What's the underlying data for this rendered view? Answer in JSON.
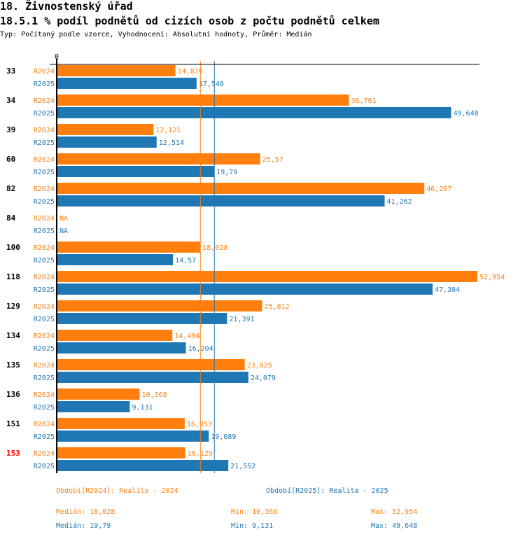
{
  "header": {
    "title": "18. Živnostenský úřad",
    "subtitle": "18.5.1 % podíl podnětů od cizích osob z počtu podnětů celkem",
    "meta": "Typ: Počítaný podle vzorce, Vyhodnocení: Absolutní hodnoty, Průměr: Medián"
  },
  "colors": {
    "r2024": "#ff7f0e",
    "r2025": "#1f77b4",
    "axis": "#000000",
    "highlight_label": "#ff0000"
  },
  "chart_data": {
    "type": "bar",
    "orientation": "horizontal",
    "title": "18.5.1 % podíl podnětů od cizích osob z počtu podnětů celkem",
    "xlabel": "",
    "ylabel": "",
    "x_ticks": [
      "0"
    ],
    "xlim": [
      0,
      53
    ],
    "grid": false,
    "categories": [
      "33",
      "34",
      "39",
      "60",
      "82",
      "84",
      "100",
      "118",
      "129",
      "134",
      "135",
      "136",
      "151",
      "153"
    ],
    "highlighted_category": "153",
    "series": [
      {
        "name": "R2024",
        "values": [
          14.879,
          36.761,
          12.121,
          25.57,
          46.267,
          null,
          18.028,
          52.954,
          25.812,
          14.494,
          23.625,
          10.368,
          16.053,
          16.129
        ],
        "labels": [
          "14,879",
          "36,761",
          "12,121",
          "25,57",
          "46,267",
          "NA",
          "18,028",
          "52,954",
          "25,812",
          "14,494",
          "23,625",
          "10,368",
          "16,053",
          "16,129"
        ],
        "median": 18.028
      },
      {
        "name": "R2025",
        "values": [
          17.548,
          49.648,
          12.514,
          19.79,
          41.262,
          null,
          14.57,
          47.304,
          21.391,
          16.204,
          24.079,
          9.131,
          19.089,
          21.552
        ],
        "labels": [
          "17,548",
          "49,648",
          "12,514",
          "19,79",
          "41,262",
          "NA",
          "14,57",
          "47,304",
          "21,391",
          "16,204",
          "24,079",
          "9,131",
          "19,089",
          "21,552"
        ],
        "median": 19.79
      }
    ]
  },
  "legend": {
    "r2024_label": "Období[R2024]: Realita - 2024",
    "r2025_label": "Období[R2025]: Realita - 2025",
    "r2024_median": "Medián: 18,028",
    "r2024_min": "Min: 10,368",
    "r2024_max": "Max: 52,954",
    "r2025_median": "Medián: 19,79",
    "r2025_min": "Min: 9,131",
    "r2025_max": "Max: 49,648"
  }
}
